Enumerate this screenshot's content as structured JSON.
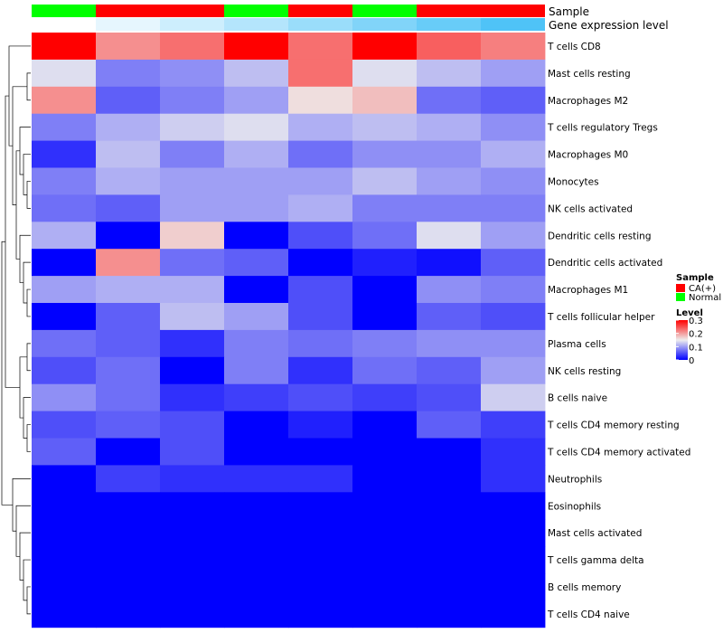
{
  "chart_data": {
    "type": "heatmap",
    "title": "",
    "annotation_rows": [
      {
        "name": "Sample",
        "values": [
          "Normal",
          "CA(+)",
          "CA(+)",
          "Normal",
          "CA(+)",
          "Normal",
          "CA(+)",
          "CA(+)"
        ]
      },
      {
        "name": "Gene expression level",
        "values": [
          0.0,
          0.05,
          0.1,
          0.15,
          0.2,
          0.25,
          0.3,
          0.35
        ]
      }
    ],
    "rows": [
      "T cells CD8",
      "Mast cells resting",
      "Macrophages M2",
      "T cells regulatory  Tregs",
      "Macrophages M0",
      "Monocytes",
      "NK cells activated",
      "Dendritic cells resting",
      "Dendritic cells activated",
      "Macrophages M1",
      "T cells follicular helper",
      "Plasma cells",
      "NK cells resting",
      "B cells naive",
      "T cells CD4 memory resting",
      "T cells CD4 memory activated",
      "Neutrophils",
      "Eosinophils",
      "Mast cells activated",
      "T cells gamma delta",
      "B cells memory",
      "T cells CD4 naive"
    ],
    "values": [
      [
        0.3,
        0.21,
        0.23,
        0.3,
        0.23,
        0.3,
        0.24,
        0.22
      ],
      [
        0.14,
        0.08,
        0.09,
        0.12,
        0.23,
        0.14,
        0.12,
        0.1
      ],
      [
        0.21,
        0.06,
        0.08,
        0.1,
        0.16,
        0.18,
        0.07,
        0.06
      ],
      [
        0.08,
        0.11,
        0.13,
        0.14,
        0.11,
        0.12,
        0.11,
        0.09
      ],
      [
        0.03,
        0.12,
        0.08,
        0.11,
        0.07,
        0.09,
        0.09,
        0.11
      ],
      [
        0.08,
        0.11,
        0.1,
        0.1,
        0.1,
        0.12,
        0.1,
        0.09
      ],
      [
        0.07,
        0.06,
        0.1,
        0.1,
        0.11,
        0.08,
        0.08,
        0.08
      ],
      [
        0.11,
        0.0,
        0.17,
        0.0,
        0.05,
        0.07,
        0.14,
        0.1
      ],
      [
        0.0,
        0.21,
        0.07,
        0.06,
        0.0,
        0.02,
        0.01,
        0.06
      ],
      [
        0.1,
        0.11,
        0.11,
        0.0,
        0.05,
        0.0,
        0.09,
        0.08
      ],
      [
        0.0,
        0.06,
        0.12,
        0.1,
        0.05,
        0.0,
        0.06,
        0.05
      ],
      [
        0.07,
        0.06,
        0.03,
        0.08,
        0.07,
        0.08,
        0.09,
        0.09
      ],
      [
        0.05,
        0.07,
        0.0,
        0.08,
        0.03,
        0.07,
        0.06,
        0.1
      ],
      [
        0.09,
        0.07,
        0.03,
        0.04,
        0.05,
        0.04,
        0.05,
        0.13
      ],
      [
        0.05,
        0.06,
        0.05,
        0.0,
        0.02,
        0.0,
        0.06,
        0.04
      ],
      [
        0.06,
        0.0,
        0.05,
        0.0,
        0.0,
        0.0,
        0.0,
        0.03
      ],
      [
        0.0,
        0.04,
        0.03,
        0.03,
        0.03,
        0.0,
        0.0,
        0.03
      ],
      [
        0.0,
        0.0,
        0.0,
        0.0,
        0.0,
        0.0,
        0.0,
        0.0
      ],
      [
        0.0,
        0.0,
        0.0,
        0.0,
        0.0,
        0.0,
        0.0,
        0.0
      ],
      [
        0.0,
        0.0,
        0.0,
        0.0,
        0.0,
        0.0,
        0.0,
        0.0
      ],
      [
        0.0,
        0.0,
        0.0,
        0.0,
        0.0,
        0.0,
        0.0,
        0.0
      ],
      [
        0.0,
        0.0,
        0.0,
        0.0,
        0.0,
        0.0,
        0.0,
        0.0
      ]
    ],
    "color_scale": {
      "min": 0,
      "mid": 0.15,
      "max": 0.3,
      "low_color": "#0000ff",
      "mid_color": "#eeeeee",
      "high_color": "#ff0000"
    },
    "annotation_colors": {
      "Sample": {
        "CA(+)": "#ff0000",
        "Normal": "#00ff00"
      },
      "Gene expression level": {
        "low_color": "#ffffff",
        "high_color": "#4fc3f7"
      }
    },
    "legend": {
      "sample_title": "Sample",
      "sample_items": [
        {
          "label": "CA(+)",
          "color": "#ff0000"
        },
        {
          "label": "Normal",
          "color": "#00ff00"
        }
      ],
      "level_title": "Level",
      "level_ticks": [
        "0.3",
        "0.2",
        "0.1",
        "0"
      ],
      "level_tick_values": [
        0.3,
        0.2,
        0.1,
        0
      ],
      "placement": "right"
    },
    "row_dendrogram": true
  }
}
